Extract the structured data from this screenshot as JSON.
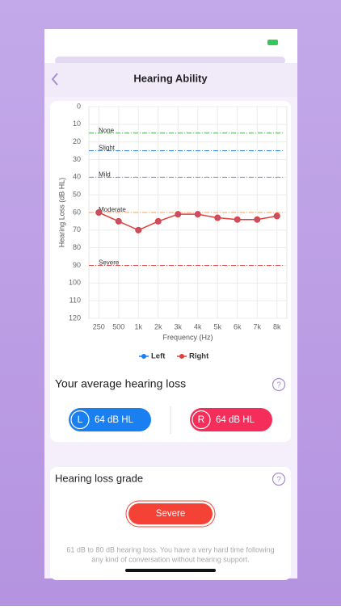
{
  "header": {
    "title": "Hearing Ability"
  },
  "chart_data": {
    "type": "line",
    "y_label": "Hearing Loss (dB HL)",
    "x_label": "Frequency (Hz)",
    "categories": [
      "250",
      "500",
      "1k",
      "2k",
      "3k",
      "4k",
      "5k",
      "6k",
      "7k",
      "8k"
    ],
    "series": [
      {
        "name": "Left",
        "color": "#1a7ff0",
        "values": [
          null,
          null,
          null,
          null,
          null,
          null,
          null,
          null,
          null,
          null
        ]
      },
      {
        "name": "Right",
        "color": "#e0403a",
        "values": [
          60,
          65,
          70,
          65,
          61,
          61,
          63,
          64,
          64,
          62
        ]
      }
    ],
    "thresholds": [
      {
        "label": "None",
        "value": 15,
        "color": "#4caf50"
      },
      {
        "label": "Slight",
        "value": 25,
        "color": "#2b7bd6"
      },
      {
        "label": "Mild",
        "value": 40,
        "color": "#8c86c8"
      },
      {
        "label": "Moderate",
        "value": 60,
        "color": "#f0a35a"
      },
      {
        "label": "Severe",
        "value": 90,
        "color": "#e05050"
      }
    ],
    "ylim": [
      0,
      120
    ],
    "yticks": [
      0,
      10,
      20,
      30,
      40,
      50,
      60,
      70,
      80,
      90,
      100,
      110,
      120
    ],
    "y_inverted": true,
    "grid": true,
    "legend": "bottom"
  },
  "average": {
    "title": "Your average hearing loss",
    "left": {
      "letter": "L",
      "text": "64 dB HL"
    },
    "right": {
      "letter": "R",
      "text": "64 dB HL"
    }
  },
  "grade": {
    "title": "Hearing loss grade",
    "button": "Severe",
    "description": [
      "61 dB to 80 dB hearing loss. You have a very hard time following",
      "any kind of conversation without hearing support."
    ]
  }
}
